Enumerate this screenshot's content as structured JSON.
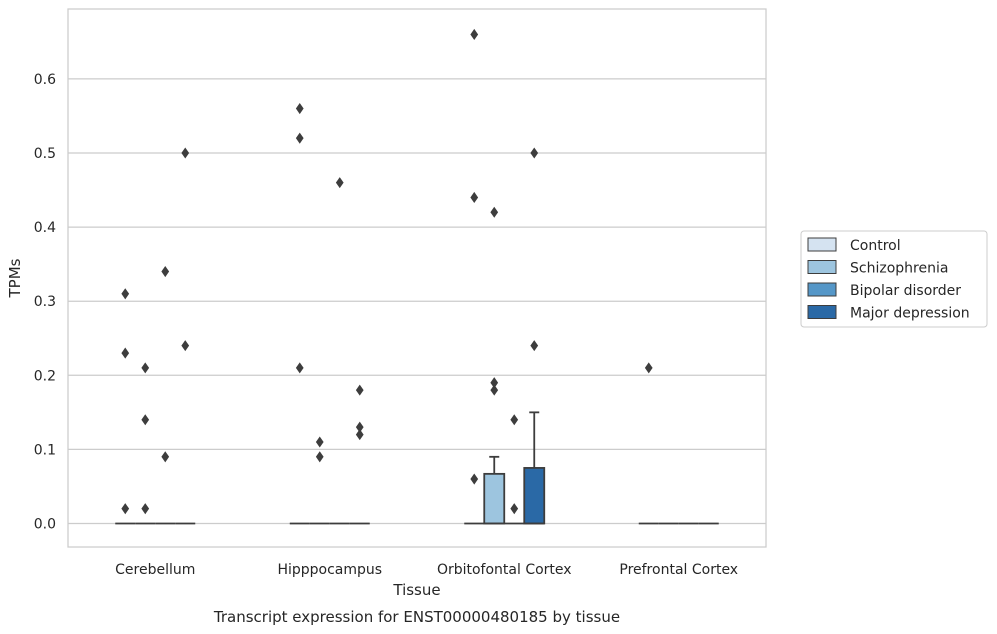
{
  "chart_data": {
    "type": "box",
    "xlabel": "Tissue",
    "ylabel": "TPMs",
    "caption": "Transcript expression for ENST00000480185 by tissue",
    "ylim": [
      -0.033,
      0.693
    ],
    "yticks": [
      0.0,
      0.1,
      0.2,
      0.3,
      0.4,
      0.5,
      0.6
    ],
    "ytick_labels": [
      "0.0",
      "0.1",
      "0.2",
      "0.3",
      "0.4",
      "0.5",
      "0.6"
    ],
    "grid": true,
    "legend_position": "right",
    "categories": [
      "Cerebellum",
      "Hipppocampus",
      "Orbitofontal Cortex",
      "Prefrontal Cortex"
    ],
    "series": [
      {
        "name": "Control",
        "color": "#d5e3f1"
      },
      {
        "name": "Schizophrenia",
        "color": "#9dc5df"
      },
      {
        "name": "Bipolar disorder",
        "color": "#5597c8"
      },
      {
        "name": "Major depression",
        "color": "#2a69a6"
      }
    ],
    "boxes": [
      {
        "category": 0,
        "series": 0,
        "q1": 0,
        "median": 0,
        "q3": 0,
        "whisker_low": 0,
        "whisker_high": 0,
        "outliers": [
          0.02,
          0.23,
          0.31
        ]
      },
      {
        "category": 0,
        "series": 1,
        "q1": 0,
        "median": 0,
        "q3": 0,
        "whisker_low": 0,
        "whisker_high": 0,
        "outliers": [
          0.02,
          0.14,
          0.21
        ]
      },
      {
        "category": 0,
        "series": 2,
        "q1": 0,
        "median": 0,
        "q3": 0,
        "whisker_low": 0,
        "whisker_high": 0,
        "outliers": [
          0.09,
          0.34
        ]
      },
      {
        "category": 0,
        "series": 3,
        "q1": 0,
        "median": 0,
        "q3": 0,
        "whisker_low": 0,
        "whisker_high": 0,
        "outliers": [
          0.24,
          0.5
        ]
      },
      {
        "category": 1,
        "series": 0,
        "q1": 0,
        "median": 0,
        "q3": 0,
        "whisker_low": 0,
        "whisker_high": 0,
        "outliers": [
          0.21,
          0.52,
          0.56
        ]
      },
      {
        "category": 1,
        "series": 1,
        "q1": 0,
        "median": 0,
        "q3": 0,
        "whisker_low": 0,
        "whisker_high": 0,
        "outliers": [
          0.09,
          0.11
        ]
      },
      {
        "category": 1,
        "series": 2,
        "q1": 0,
        "median": 0,
        "q3": 0,
        "whisker_low": 0,
        "whisker_high": 0,
        "outliers": [
          0.46
        ]
      },
      {
        "category": 1,
        "series": 3,
        "q1": 0,
        "median": 0,
        "q3": 0,
        "whisker_low": 0,
        "whisker_high": 0,
        "outliers": [
          0.12,
          0.13,
          0.18
        ]
      },
      {
        "category": 2,
        "series": 0,
        "q1": 0,
        "median": 0,
        "q3": 0,
        "whisker_low": 0,
        "whisker_high": 0,
        "outliers": [
          0.06,
          0.44,
          0.66
        ]
      },
      {
        "category": 2,
        "series": 1,
        "q1": 0,
        "median": 0,
        "q3": 0.067,
        "whisker_low": 0,
        "whisker_high": 0.09,
        "outliers": [
          0.18,
          0.19,
          0.42
        ]
      },
      {
        "category": 2,
        "series": 2,
        "q1": 0,
        "median": 0,
        "q3": 0,
        "whisker_low": 0,
        "whisker_high": 0,
        "outliers": [
          0.02,
          0.14
        ]
      },
      {
        "category": 2,
        "series": 3,
        "q1": 0,
        "median": 0,
        "q3": 0.075,
        "whisker_low": 0,
        "whisker_high": 0.15,
        "outliers": [
          0.24,
          0.5
        ]
      },
      {
        "category": 3,
        "series": 0,
        "q1": 0,
        "median": 0,
        "q3": 0,
        "whisker_low": 0,
        "whisker_high": 0,
        "outliers": [
          0.21
        ]
      },
      {
        "category": 3,
        "series": 1,
        "q1": 0,
        "median": 0,
        "q3": 0,
        "whisker_low": 0,
        "whisker_high": 0,
        "outliers": []
      },
      {
        "category": 3,
        "series": 2,
        "q1": 0,
        "median": 0,
        "q3": 0,
        "whisker_low": 0,
        "whisker_high": 0,
        "outliers": []
      },
      {
        "category": 3,
        "series": 3,
        "q1": 0,
        "median": 0,
        "q3": 0,
        "whisker_low": 0,
        "whisker_high": 0,
        "outliers": []
      }
    ]
  }
}
